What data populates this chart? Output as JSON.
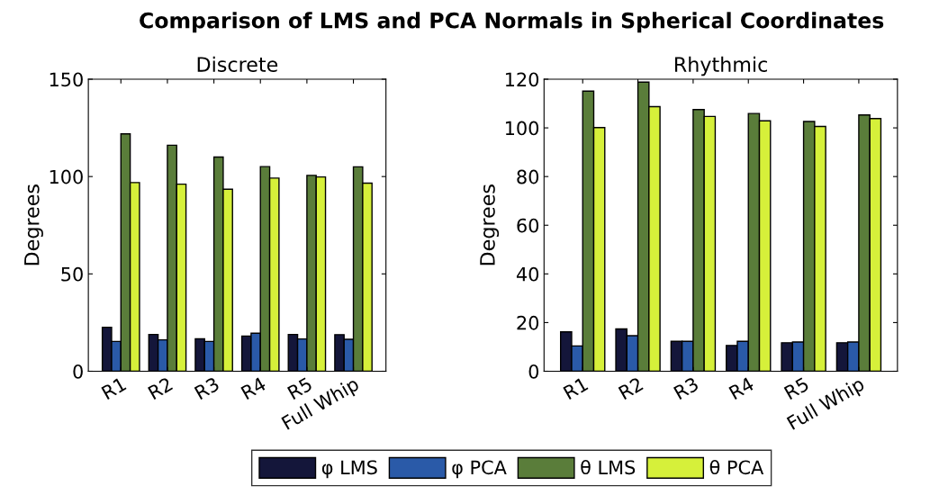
{
  "chart_data": [
    {
      "type": "bar",
      "title": "Discrete",
      "ylabel": "Degrees",
      "annotations": [
        "Comparison of LMS and PCA Normals in Spherical Coordinates"
      ],
      "categories": [
        "R1",
        "R2",
        "R3",
        "R4",
        "R5",
        "Full Whip"
      ],
      "ylim": [
        0,
        150
      ],
      "yticks": [
        0,
        50,
        100,
        150
      ],
      "legend": "bottom",
      "grid": false,
      "series": [
        {
          "name": "φ LMS",
          "color": "#14163a",
          "values": [
            22.6,
            18.9,
            16.7,
            18.1,
            18.9,
            18.8
          ]
        },
        {
          "name": "φ PCA",
          "color": "#2a5aa8",
          "values": [
            15.3,
            16.1,
            15.3,
            19.5,
            16.6,
            16.4
          ]
        },
        {
          "name": "θ LMS",
          "color": "#5a7d3a",
          "values": [
            121.9,
            116.1,
            110.0,
            105.1,
            100.6,
            105.0
          ]
        },
        {
          "name": "θ PCA",
          "color": "#d6f03a",
          "values": [
            96.9,
            96.1,
            93.5,
            99.2,
            99.8,
            96.6
          ]
        }
      ]
    },
    {
      "type": "bar",
      "title": "Rhythmic",
      "ylabel": "Degrees",
      "categories": [
        "R1",
        "R2",
        "R3",
        "R4",
        "R5",
        "Full Whip"
      ],
      "ylim": [
        0,
        120
      ],
      "yticks": [
        0,
        20,
        40,
        60,
        80,
        100,
        120
      ],
      "grid": false,
      "series": [
        {
          "color": "#14163a",
          "values": [
            16.2,
            17.4,
            12.3,
            10.6,
            11.7,
            11.7
          ]
        },
        {
          "color": "#2a5aa8",
          "values": [
            10.4,
            14.6,
            12.3,
            12.3,
            12.0,
            12.0
          ]
        },
        {
          "color": "#5a7d3a",
          "values": [
            115.1,
            118.8,
            107.5,
            105.9,
            102.6,
            105.3
          ]
        },
        {
          "color": "#d6f03a",
          "values": [
            100.1,
            108.7,
            104.7,
            102.9,
            100.6,
            103.8
          ]
        }
      ]
    }
  ]
}
